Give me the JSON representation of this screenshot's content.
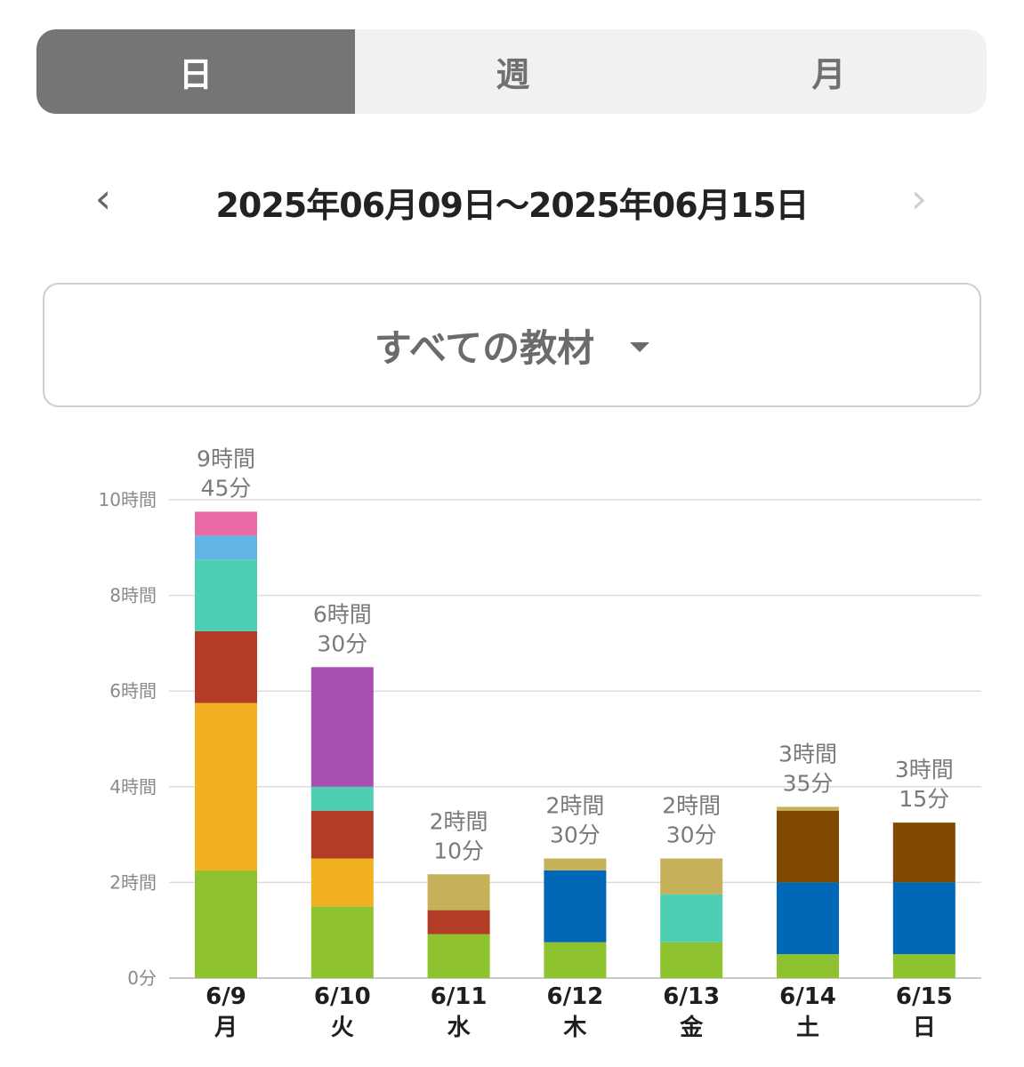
{
  "tabs": [
    {
      "label": "日",
      "active": true
    },
    {
      "label": "週",
      "active": false
    },
    {
      "label": "月",
      "active": false
    }
  ],
  "date_nav": {
    "prev_icon": "chevron-left-icon",
    "next_icon": "chevron-right-icon",
    "range": "2025年06月09日〜2025年06月15日"
  },
  "material_select": {
    "label": "すべての教材",
    "icon": "caret-down-icon"
  },
  "colors": {
    "green": "#8ec22e",
    "orange": "#f2b120",
    "red": "#b33c27",
    "teal": "#4ecfb4",
    "lightblue": "#62b4e6",
    "pink": "#ea6aa6",
    "purple": "#a94fb2",
    "olive": "#c6b05a",
    "blue": "#0068b6",
    "brown": "#7f4a00"
  },
  "chart_data": {
    "type": "bar",
    "stacked": true,
    "unit": "hours",
    "ylim": [
      0,
      10
    ],
    "yticks": [
      {
        "value": 0,
        "label": "0分"
      },
      {
        "value": 2,
        "label": "2時間"
      },
      {
        "value": 4,
        "label": "4時間"
      },
      {
        "value": 6,
        "label": "6時間"
      },
      {
        "value": 8,
        "label": "8時間"
      },
      {
        "value": 10,
        "label": "10時間"
      }
    ],
    "grid": true,
    "categories": [
      {
        "date": "6/9",
        "weekday": "月"
      },
      {
        "date": "6/10",
        "weekday": "火"
      },
      {
        "date": "6/11",
        "weekday": "水"
      },
      {
        "date": "6/12",
        "weekday": "木"
      },
      {
        "date": "6/13",
        "weekday": "金"
      },
      {
        "date": "6/14",
        "weekday": "土"
      },
      {
        "date": "6/15",
        "weekday": "日"
      }
    ],
    "totals": [
      [
        "9時間",
        "45分"
      ],
      [
        "6時間",
        "30分"
      ],
      [
        "2時間",
        "10分"
      ],
      [
        "2時間",
        "30分"
      ],
      [
        "2時間",
        "30分"
      ],
      [
        "3時間",
        "35分"
      ],
      [
        "3時間",
        "15分"
      ]
    ],
    "stacks": [
      [
        {
          "color": "green",
          "value": 2.25
        },
        {
          "color": "orange",
          "value": 3.5
        },
        {
          "color": "red",
          "value": 1.5
        },
        {
          "color": "teal",
          "value": 1.5
        },
        {
          "color": "lightblue",
          "value": 0.5
        },
        {
          "color": "pink",
          "value": 0.5
        }
      ],
      [
        {
          "color": "green",
          "value": 1.5
        },
        {
          "color": "orange",
          "value": 1.0
        },
        {
          "color": "red",
          "value": 1.0
        },
        {
          "color": "teal",
          "value": 0.5
        },
        {
          "color": "purple",
          "value": 2.5
        }
      ],
      [
        {
          "color": "green",
          "value": 0.92
        },
        {
          "color": "red",
          "value": 0.5
        },
        {
          "color": "olive",
          "value": 0.75
        }
      ],
      [
        {
          "color": "green",
          "value": 0.75
        },
        {
          "color": "blue",
          "value": 1.5
        },
        {
          "color": "olive",
          "value": 0.25
        }
      ],
      [
        {
          "color": "green",
          "value": 0.75
        },
        {
          "color": "teal",
          "value": 1.0
        },
        {
          "color": "olive",
          "value": 0.75
        }
      ],
      [
        {
          "color": "green",
          "value": 0.5
        },
        {
          "color": "blue",
          "value": 1.5
        },
        {
          "color": "brown",
          "value": 1.5
        },
        {
          "color": "olive",
          "value": 0.08
        }
      ],
      [
        {
          "color": "green",
          "value": 0.5
        },
        {
          "color": "blue",
          "value": 1.5
        },
        {
          "color": "brown",
          "value": 1.25
        }
      ]
    ]
  }
}
